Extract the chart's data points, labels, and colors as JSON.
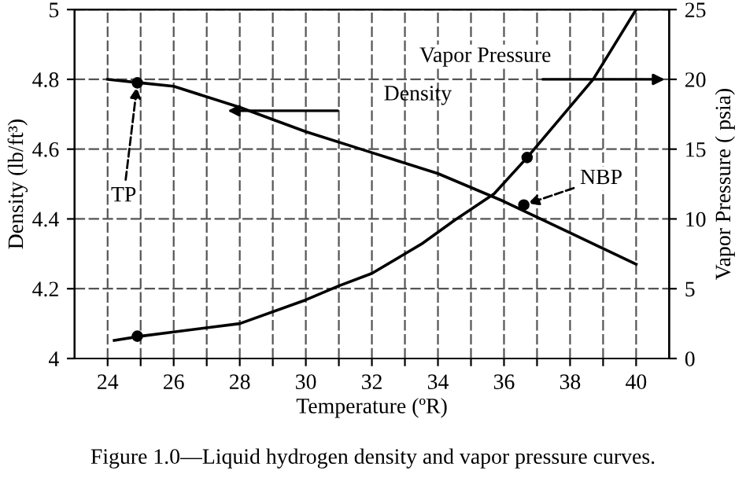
{
  "chart_data": {
    "type": "line",
    "xlabel": "Temperature (ºR)",
    "ylabel": "Density (lb/ft³)",
    "y2label": "Vapor Pressure ( psia)",
    "xlim": [
      23,
      41
    ],
    "xticks": [
      24,
      {
        "value": 25,
        "label": null
      },
      26,
      {
        "value": 27,
        "label": null
      },
      28,
      {
        "value": 29,
        "label": null
      },
      30,
      {
        "value": 31,
        "label": null
      },
      32,
      {
        "value": 33,
        "label": null
      },
      34,
      {
        "value": 35,
        "label": null
      },
      36,
      {
        "value": 37,
        "label": null
      },
      38,
      {
        "value": 39,
        "label": null
      },
      40
    ],
    "ylim": [
      4,
      5
    ],
    "yticks": [
      4,
      4.2,
      4.4,
      4.6,
      4.8,
      5
    ],
    "y2lim": [
      0,
      25
    ],
    "y2ticks": [
      0,
      5,
      10,
      15,
      20,
      25
    ],
    "grid": true,
    "marker": "none",
    "line_style": "solid",
    "series": [
      {
        "name": "Density",
        "color": "#000000",
        "x": [
          24.0,
          25.0,
          26.0,
          28.0,
          30.0,
          32.0,
          34.0,
          36.0,
          38.0,
          40.0
        ],
        "values": [
          4.8,
          4.79,
          4.78,
          4.72,
          4.65,
          4.59,
          4.53,
          4.45,
          4.36,
          4.27
        ]
      },
      {
        "name": "Vapor Pressure",
        "color": "#000000",
        "axis": "y2",
        "x": [
          24.2,
          25.0,
          26.0,
          28.0,
          30.0,
          31.0,
          32.0,
          33.5,
          34.5,
          35.7,
          36.7,
          38.7,
          40.0
        ],
        "values": [
          1.3,
          1.6,
          1.9,
          2.5,
          4.2,
          5.2,
          6.1,
          8.2,
          9.9,
          11.8,
          14.4,
          20.0,
          25.0
        ]
      },
      {
        "type": "scatter",
        "color": "#000000",
        "marker": "circle",
        "x": [
          24.9,
          36.6
        ],
        "values": [
          4.79,
          4.44
        ]
      },
      {
        "type": "scatter",
        "color": "#000000",
        "marker": "circle",
        "axis": "y2",
        "x": [
          24.9,
          36.7
        ],
        "values": [
          1.6,
          14.4
        ]
      }
    ],
    "annotations": [
      {
        "text": "TP",
        "x": 24.9,
        "y": 4.79
      },
      {
        "text": "NBP",
        "x": 36.6,
        "y": 4.44
      },
      "Figure 1.0—Liquid hydrogen density and vapor pressure curves."
    ]
  }
}
